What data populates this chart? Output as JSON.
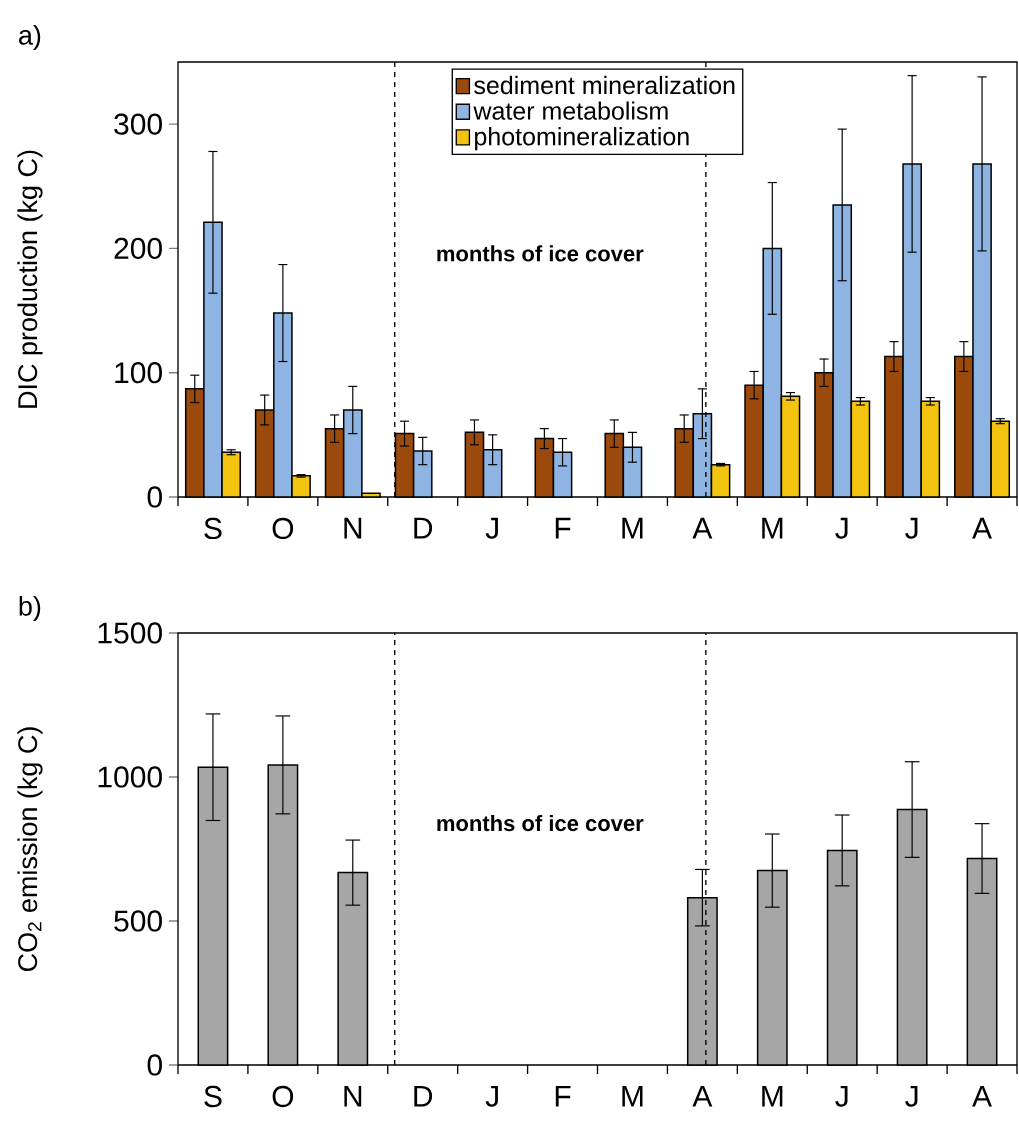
{
  "chart_data": [
    {
      "type": "bar",
      "title": "a)",
      "ylabel": "DIC production (kg C)",
      "categories": [
        "S",
        "O",
        "N",
        "D",
        "J",
        "F",
        "M",
        "A",
        "M",
        "J",
        "J",
        "A"
      ],
      "series": [
        {
          "name": "sediment mineralization",
          "color": "#9c4a0c",
          "values": [
            87,
            70,
            55,
            51,
            52,
            47,
            51,
            55,
            90,
            100,
            113,
            113
          ],
          "errors": [
            11,
            12,
            11,
            10,
            10,
            8,
            11,
            11,
            11,
            11,
            12,
            12
          ]
        },
        {
          "name": "water metabolism",
          "color": "#8db4e2",
          "values": [
            221,
            148,
            70,
            37,
            38,
            36,
            40,
            67,
            200,
            235,
            268,
            268
          ],
          "errors": [
            57,
            39,
            19,
            11,
            12,
            11,
            12,
            20,
            53,
            61,
            71,
            70
          ]
        },
        {
          "name": "photomineralization",
          "color": "#f2c40f",
          "values": [
            36,
            17,
            3,
            null,
            null,
            null,
            null,
            26,
            81,
            77,
            77,
            61
          ],
          "errors": [
            2,
            1,
            null,
            null,
            null,
            null,
            null,
            1,
            3,
            3,
            3,
            2
          ]
        }
      ],
      "ylim": [
        0,
        350
      ],
      "yticks": [
        0,
        100,
        200,
        300
      ],
      "legend": "top",
      "annotations": [
        "months of ice cover"
      ]
    },
    {
      "type": "bar",
      "title": "b)",
      "ylabel": "CO$_{2}$ emission (kg C)",
      "categories": [
        "S",
        "O",
        "N",
        "D",
        "J",
        "F",
        "M",
        "A",
        "M",
        "J",
        "J",
        "A"
      ],
      "series": [
        {
          "color": "#a6a6a6",
          "values": [
            1034,
            1042,
            668,
            null,
            null,
            null,
            null,
            581,
            675,
            745,
            887,
            717
          ],
          "errors": [
            185,
            170,
            113,
            null,
            null,
            null,
            null,
            98,
            127,
            123,
            166,
            121
          ]
        }
      ],
      "ylim": [
        0,
        1500
      ],
      "yticks": [
        0,
        500,
        1000,
        1500
      ],
      "annotations": [
        "months of ice cover"
      ]
    }
  ]
}
